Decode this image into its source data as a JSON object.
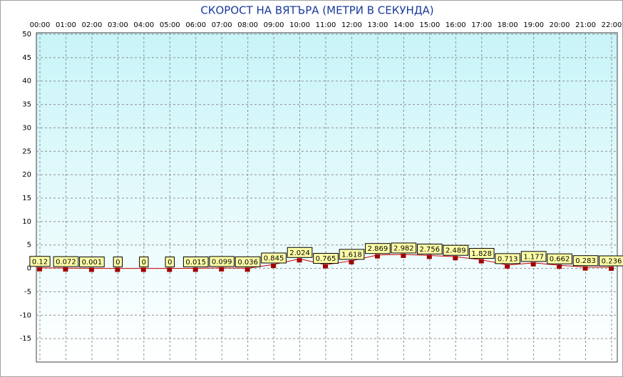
{
  "chart_data": {
    "type": "line",
    "title": "СКОРОСТ НА ВЯТЪРА (МЕТРИ В СЕКУНДА)",
    "categories": [
      "00:00",
      "01:00",
      "02:00",
      "03:00",
      "04:00",
      "05:00",
      "06:00",
      "07:00",
      "08:00",
      "09:00",
      "10:00",
      "11:00",
      "12:00",
      "13:00",
      "14:00",
      "15:00",
      "16:00",
      "17:00",
      "18:00",
      "19:00",
      "20:00",
      "21:00",
      "22:00"
    ],
    "series": [
      {
        "color": "#cc0000",
        "marker_color": "#a00000",
        "values": [
          0.12,
          0.072,
          0.001,
          0,
          0,
          0,
          0.015,
          0.099,
          0.036,
          0.845,
          2.024,
          0.765,
          1.618,
          2.869,
          2.982,
          2.756,
          2.489,
          1.828,
          0.713,
          1.177,
          0.662,
          0.283,
          0.236
        ]
      }
    ],
    "ylim": [
      -20,
      50
    ],
    "yticks": [
      -15,
      -10,
      -5,
      0,
      5,
      10,
      15,
      20,
      25,
      30,
      35,
      40,
      45,
      50
    ],
    "grid": true,
    "data_labels": true,
    "label_background": "#ffffa8",
    "title_color": "#1a3a9c"
  }
}
